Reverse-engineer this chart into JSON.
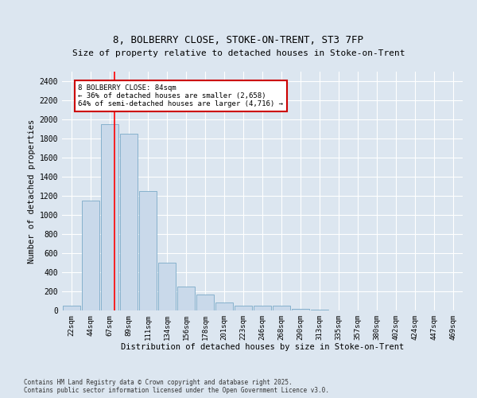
{
  "title1": "8, BOLBERRY CLOSE, STOKE-ON-TRENT, ST3 7FP",
  "title2": "Size of property relative to detached houses in Stoke-on-Trent",
  "xlabel": "Distribution of detached houses by size in Stoke-on-Trent",
  "ylabel": "Number of detached properties",
  "bin_labels": [
    "22sqm",
    "44sqm",
    "67sqm",
    "89sqm",
    "111sqm",
    "134sqm",
    "156sqm",
    "178sqm",
    "201sqm",
    "223sqm",
    "246sqm",
    "268sqm",
    "290sqm",
    "313sqm",
    "335sqm",
    "357sqm",
    "380sqm",
    "402sqm",
    "424sqm",
    "447sqm",
    "469sqm"
  ],
  "bar_values": [
    50,
    1150,
    1950,
    1850,
    1250,
    500,
    250,
    170,
    80,
    50,
    50,
    50,
    20,
    5,
    2,
    1,
    1,
    0,
    0,
    0,
    0
  ],
  "bar_color": "#c9d9ea",
  "bar_edge_color": "#7aaac8",
  "background_color": "#dce6f0",
  "red_line_x": 2.27,
  "annotation_line1": "8 BOLBERRY CLOSE: 84sqm",
  "annotation_line2": "← 36% of detached houses are smaller (2,658)",
  "annotation_line3": "64% of semi-detached houses are larger (4,716) →",
  "annotation_box_facecolor": "#ffffff",
  "annotation_box_edgecolor": "#cc0000",
  "ylim": [
    0,
    2500
  ],
  "yticks": [
    0,
    200,
    400,
    600,
    800,
    1000,
    1200,
    1400,
    1600,
    1800,
    2000,
    2200,
    2400
  ],
  "footer1": "Contains HM Land Registry data © Crown copyright and database right 2025.",
  "footer2": "Contains public sector information licensed under the Open Government Licence v3.0."
}
